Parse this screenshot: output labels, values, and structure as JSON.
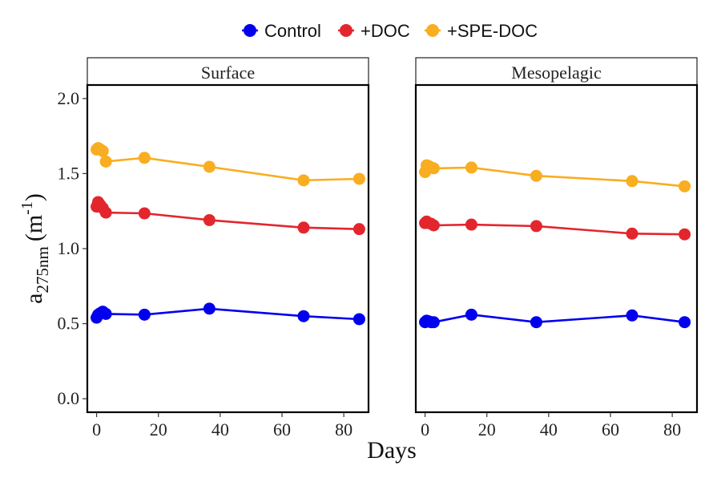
{
  "chart_data": {
    "type": "line",
    "xlabel": "Days",
    "ylabel": {
      "main": "a",
      "sub": "275nm",
      "unit_open": "(m",
      "unit_sup": "-1",
      "unit_close": ")"
    },
    "xlim": [
      -3,
      88
    ],
    "ylim": [
      -0.09,
      2.09
    ],
    "x_ticks": [
      0,
      20,
      40,
      60,
      80
    ],
    "x_tick_labels": [
      "0",
      "20",
      "40",
      "60",
      "80"
    ],
    "y_ticks": [
      0.0,
      0.5,
      1.0,
      1.5,
      2.0
    ],
    "y_tick_labels": [
      "0.0",
      "0.5",
      "1.0",
      "1.5",
      "2.0"
    ],
    "grid": false,
    "legend_position": "top",
    "legend": [
      {
        "name": "Control",
        "color": "#0000ee"
      },
      {
        "name": "+DOC",
        "color": "#e3262d"
      },
      {
        "name": "+SPE-DOC",
        "color": "#f9ad20"
      }
    ],
    "panels": [
      {
        "label": "Surface",
        "series": [
          {
            "name": "Control",
            "color": "#0000ee",
            "x": [
              0,
              0.5,
              1.2,
              2,
              3,
              15.5,
              36.5,
              67,
              85
            ],
            "y": [
              0.54,
              0.56,
              0.57,
              0.58,
              0.565,
              0.56,
              0.6,
              0.55,
              0.53
            ]
          },
          {
            "name": "+DOC",
            "color": "#e3262d",
            "x": [
              0,
              0.5,
              1.2,
              2,
              3,
              15.5,
              36.5,
              67,
              85
            ],
            "y": [
              1.28,
              1.31,
              1.29,
              1.27,
              1.24,
              1.235,
              1.19,
              1.14,
              1.13
            ]
          },
          {
            "name": "+SPE-DOC",
            "color": "#f9ad20",
            "x": [
              0,
              0.5,
              1.2,
              2,
              3,
              15.5,
              36.5,
              67,
              85
            ],
            "y": [
              1.66,
              1.67,
              1.66,
              1.65,
              1.58,
              1.605,
              1.545,
              1.455,
              1.465
            ]
          }
        ]
      },
      {
        "label": "Mesopelagic",
        "series": [
          {
            "name": "Control",
            "color": "#0000ee",
            "x": [
              0,
              0.5,
              1.2,
              2,
              2.8,
              15,
              36,
              67,
              84
            ],
            "y": [
              0.51,
              0.52,
              0.515,
              0.51,
              0.51,
              0.56,
              0.51,
              0.555,
              0.51
            ]
          },
          {
            "name": "+DOC",
            "color": "#e3262d",
            "x": [
              0,
              0.5,
              1.2,
              2,
              2.8,
              15,
              36,
              67,
              84
            ],
            "y": [
              1.17,
              1.18,
              1.17,
              1.165,
              1.155,
              1.16,
              1.15,
              1.1,
              1.095
            ]
          },
          {
            "name": "+SPE-DOC",
            "color": "#f9ad20",
            "x": [
              0,
              0.5,
              1.2,
              2,
              2.8,
              15,
              36,
              67,
              84
            ],
            "y": [
              1.51,
              1.555,
              1.55,
              1.54,
              1.535,
              1.54,
              1.485,
              1.45,
              1.415
            ]
          }
        ]
      }
    ]
  }
}
